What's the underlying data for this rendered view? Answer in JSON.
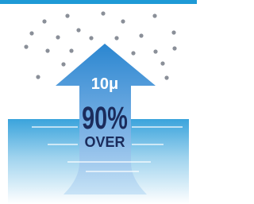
{
  "illustration": {
    "size": "10μ",
    "percent": "90%",
    "over": "OVER"
  }
}
